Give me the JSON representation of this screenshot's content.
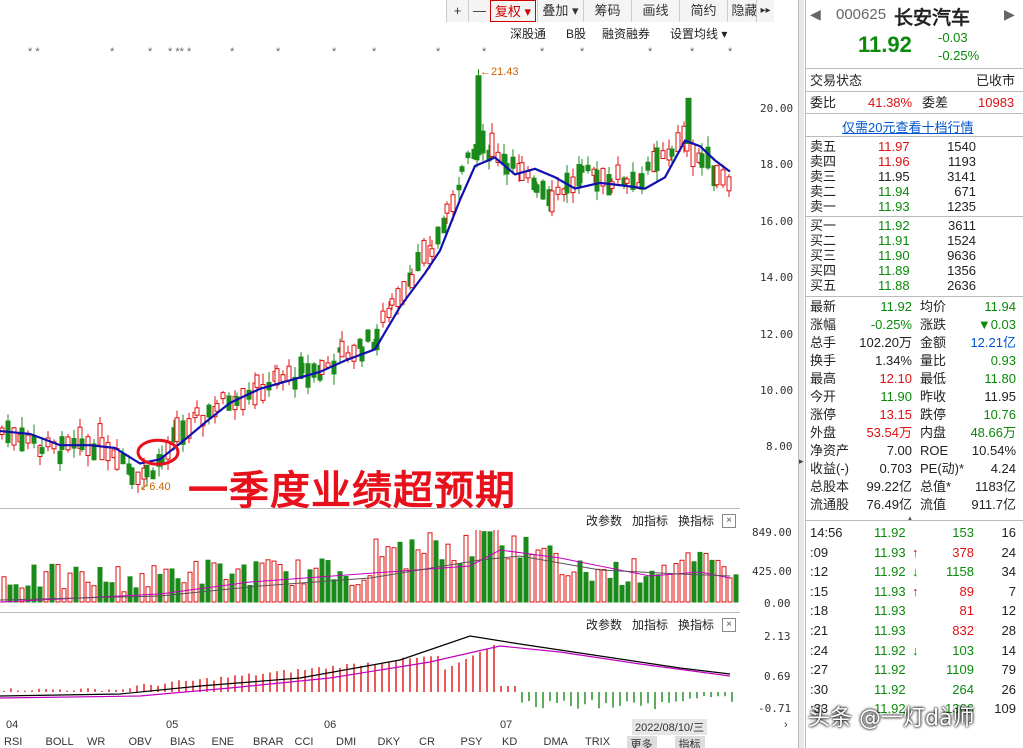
{
  "toolbar": {
    "buttons": [
      "+",
      "—",
      "复权 ▾",
      "叠加 ▾",
      "筹码",
      "画线",
      "简约",
      "隐藏",
      "▸▸"
    ],
    "active_index": 2
  },
  "subbar": {
    "items": [
      "深股通",
      "B股",
      "融资融券",
      "设置均线 ▾"
    ]
  },
  "kline": {
    "price_ticks": [
      "20.00",
      "18.00",
      "16.00",
      "14.00",
      "12.00",
      "10.00",
      "8.00"
    ],
    "high_label": "21.43",
    "low_label": "6.40",
    "colors": {
      "up": "#e01010",
      "down": "#1a8a1a",
      "ma": "#1010b0"
    }
  },
  "volume_panel": {
    "buttons": [
      "改参数",
      "加指标",
      "换指标"
    ],
    "ticks": [
      "849.00",
      "425.00",
      "0.00"
    ]
  },
  "macd_panel": {
    "buttons": [
      "改参数",
      "加指标",
      "换指标"
    ],
    "ticks": [
      "2.13",
      "0.69",
      "-0.71"
    ]
  },
  "annotation": "一季度业绩超预期",
  "date_axis": {
    "labels": [
      "04",
      "05",
      "06",
      "07"
    ],
    "current": "2022/08/10/三"
  },
  "indicator_tabs": [
    "RSI",
    "BOLL",
    "WR",
    "OBV",
    "BIAS",
    "ENE",
    "BRAR",
    "CCI",
    "DMI",
    "DKY",
    "CR",
    "PSY",
    "KD",
    "DMA",
    "TRIX",
    "更多",
    "指标"
  ],
  "quote": {
    "code": "000625",
    "name": "长安汽车",
    "price": "11.92",
    "change": "-0.03",
    "change_pct": "-0.25%",
    "trade_status_label": "交易状态",
    "trade_status": "已收市",
    "weibi_label": "委比",
    "weibi": "41.38%",
    "weicha_label": "委差",
    "weicha": "10983",
    "promo": "仅需20元查看十档行情",
    "asks": [
      {
        "label": "卖五",
        "price": "11.97",
        "vol": "1540",
        "color": "red"
      },
      {
        "label": "卖四",
        "price": "11.96",
        "vol": "1193",
        "color": "red"
      },
      {
        "label": "卖三",
        "price": "11.95",
        "vol": "3141",
        "color": "dark"
      },
      {
        "label": "卖二",
        "price": "11.94",
        "vol": "671",
        "color": "green"
      },
      {
        "label": "卖一",
        "price": "11.93",
        "vol": "1235",
        "color": "green"
      }
    ],
    "bids": [
      {
        "label": "买一",
        "price": "11.92",
        "vol": "3611",
        "color": "green"
      },
      {
        "label": "买二",
        "price": "11.91",
        "vol": "1524",
        "color": "green"
      },
      {
        "label": "买三",
        "price": "11.90",
        "vol": "9636",
        "color": "green"
      },
      {
        "label": "买四",
        "price": "11.89",
        "vol": "1356",
        "color": "green"
      },
      {
        "label": "买五",
        "price": "11.88",
        "vol": "2636",
        "color": "green"
      }
    ],
    "stats": [
      {
        "l1": "最新",
        "v1": "11.92",
        "c1": "green",
        "l2": "均价",
        "v2": "11.94",
        "c2": "green"
      },
      {
        "l1": "涨幅",
        "v1": "-0.25%",
        "c1": "green",
        "l2": "涨跌",
        "v2": "▼0.03",
        "c2": "green"
      },
      {
        "l1": "总手",
        "v1": "102.20万",
        "c1": "dark",
        "l2": "金额",
        "v2": "12.21亿",
        "c2": "blue"
      },
      {
        "l1": "换手",
        "v1": "1.34%",
        "c1": "dark",
        "l2": "量比",
        "v2": "0.93",
        "c2": "green"
      },
      {
        "l1": "最高",
        "v1": "12.10",
        "c1": "red",
        "l2": "最低",
        "v2": "11.80",
        "c2": "green"
      },
      {
        "l1": "今开",
        "v1": "11.90",
        "c1": "green",
        "l2": "昨收",
        "v2": "11.95",
        "c2": "dark"
      },
      {
        "l1": "涨停",
        "v1": "13.15",
        "c1": "red",
        "l2": "跌停",
        "v2": "10.76",
        "c2": "green"
      },
      {
        "l1": "外盘",
        "v1": "53.54万",
        "c1": "red",
        "l2": "内盘",
        "v2": "48.66万",
        "c2": "green"
      },
      {
        "l1": "净资产",
        "v1": "7.00",
        "c1": "dark",
        "l2": "ROE",
        "v2": "10.54%",
        "c2": "dark"
      },
      {
        "l1": "收益(-)",
        "v1": "0.703",
        "c1": "dark",
        "l2": "PE(动)*",
        "v2": "4.24",
        "c2": "dark"
      },
      {
        "l1": "总股本",
        "v1": "99.22亿",
        "c1": "dark",
        "l2": "总值*",
        "v2": "1183亿",
        "c2": "dark"
      },
      {
        "l1": "流通股",
        "v1": "76.49亿",
        "c1": "dark",
        "l2": "流值",
        "v2": "911.7亿",
        "c2": "dark"
      }
    ],
    "ticks": [
      {
        "t": "14:56",
        "p": "11.92",
        "pc": "green",
        "arrow": "",
        "v": "153",
        "vc": "green",
        "n": "16"
      },
      {
        "t": ":09",
        "p": "11.93",
        "pc": "green",
        "arrow": "↑",
        "v": "378",
        "vc": "red",
        "n": "24"
      },
      {
        "t": ":12",
        "p": "11.92",
        "pc": "green",
        "arrow": "↓",
        "v": "1158",
        "vc": "green",
        "n": "34"
      },
      {
        "t": ":15",
        "p": "11.93",
        "pc": "green",
        "arrow": "↑",
        "v": "89",
        "vc": "red",
        "n": "7"
      },
      {
        "t": ":18",
        "p": "11.93",
        "pc": "green",
        "arrow": "",
        "v": "81",
        "vc": "red",
        "n": "12"
      },
      {
        "t": ":21",
        "p": "11.93",
        "pc": "green",
        "arrow": "",
        "v": "832",
        "vc": "red",
        "n": "28"
      },
      {
        "t": ":24",
        "p": "11.92",
        "pc": "green",
        "arrow": "↓",
        "v": "103",
        "vc": "green",
        "n": "14"
      },
      {
        "t": ":27",
        "p": "11.92",
        "pc": "green",
        "arrow": "",
        "v": "1109",
        "vc": "green",
        "n": "79"
      },
      {
        "t": ":30",
        "p": "11.92",
        "pc": "green",
        "arrow": "",
        "v": "264",
        "vc": "green",
        "n": "26"
      },
      {
        "t": ":33",
        "p": "11.92",
        "pc": "green",
        "arrow": "",
        "v": "1366",
        "vc": "green",
        "n": "109"
      }
    ]
  },
  "watermark": "头条 @一灯dà师"
}
